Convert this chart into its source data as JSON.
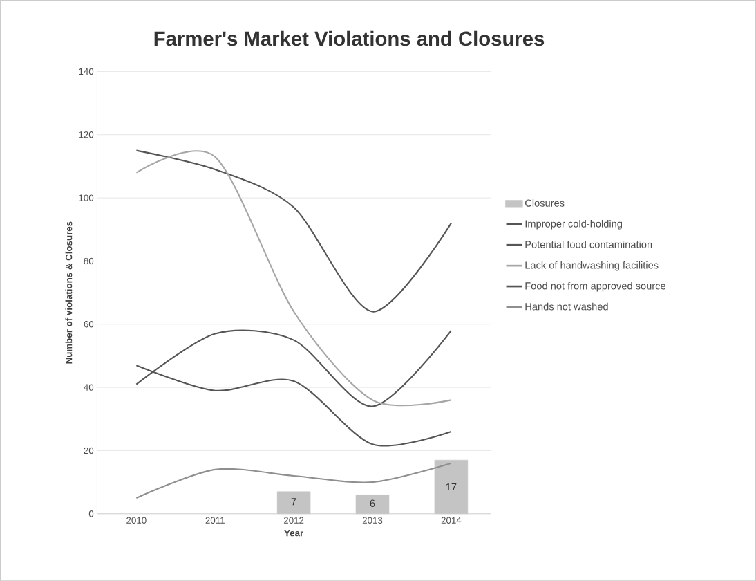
{
  "chart_data": {
    "type": "line",
    "title": "Farmer's Market Violations and Closures",
    "xlabel": "Year",
    "ylabel": "Number of violations & Closures",
    "categories": [
      "2010",
      "2011",
      "2012",
      "2013",
      "2014"
    ],
    "series": [
      {
        "name": "Closures",
        "type": "bar",
        "color": "#c4c4c4",
        "values": [
          null,
          null,
          7,
          6,
          17
        ],
        "value_labels": [
          null,
          null,
          "7",
          "6",
          "17"
        ]
      },
      {
        "name": "Improper cold-holding",
        "color": "#555555",
        "values": [
          115,
          109,
          97,
          64,
          92
        ]
      },
      {
        "name": "Potential  food contamination",
        "color": "#555555",
        "values": [
          41,
          57,
          55,
          34,
          58
        ]
      },
      {
        "name": "Lack of  handwashing facilities",
        "color": "#a6a6a6",
        "values": [
          108,
          113,
          64,
          36,
          36
        ]
      },
      {
        "name": "Food not from approved source",
        "color": "#555555",
        "values": [
          47,
          39,
          42,
          22,
          26
        ]
      },
      {
        "name": "Hands not washed",
        "color": "#8f8f8f",
        "values": [
          5,
          14,
          12,
          10,
          16
        ]
      }
    ],
    "ylim": [
      0,
      140
    ],
    "yticks": [
      0,
      20,
      40,
      60,
      80,
      100,
      120,
      140
    ],
    "grid": "y",
    "legend": "right",
    "marker": "none"
  }
}
